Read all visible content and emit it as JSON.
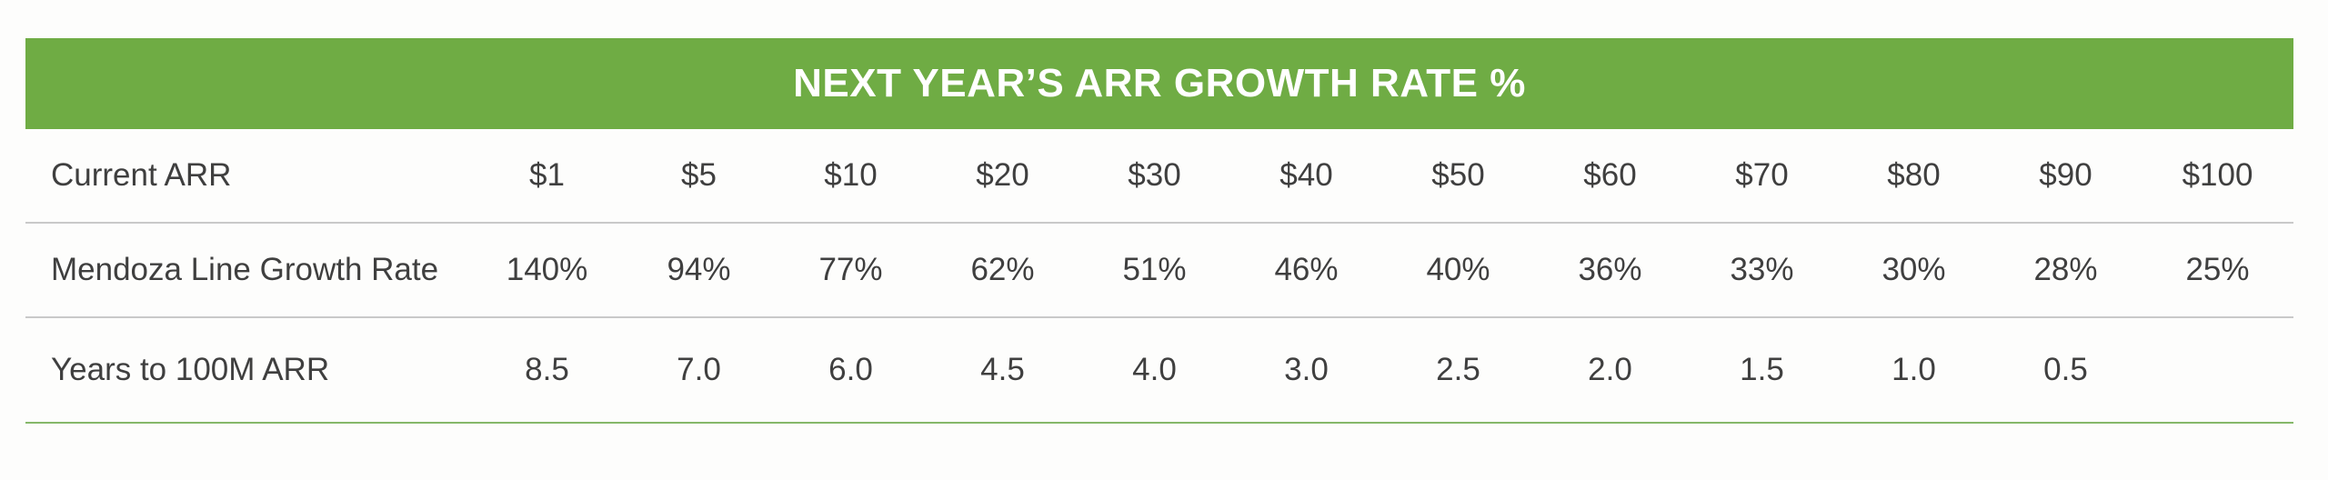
{
  "title": "NEXT YEAR’S ARR GROWTH RATE %",
  "rows": [
    {
      "label": "Current ARR",
      "values": [
        "$1",
        "$5",
        "$10",
        "$20",
        "$30",
        "$40",
        "$50",
        "$60",
        "$70",
        "$80",
        "$90",
        "$100"
      ]
    },
    {
      "label": "Mendoza Line Growth Rate",
      "values": [
        "140%",
        "94%",
        "77%",
        "62%",
        "51%",
        "46%",
        "40%",
        "36%",
        "33%",
        "30%",
        "28%",
        "25%"
      ]
    },
    {
      "label": "Years to 100M ARR",
      "values": [
        "8.5",
        "7.0",
        "6.0",
        "4.5",
        "4.0",
        "3.0",
        "2.5",
        "2.0",
        "1.5",
        "1.0",
        "0.5",
        ""
      ]
    }
  ],
  "colors": {
    "header_bg": "#6fac44",
    "header_text": "#ffffff",
    "body_text": "#3f3f3f",
    "row_divider": "#c9c9c9",
    "bottom_rule": "#86b86a"
  }
}
